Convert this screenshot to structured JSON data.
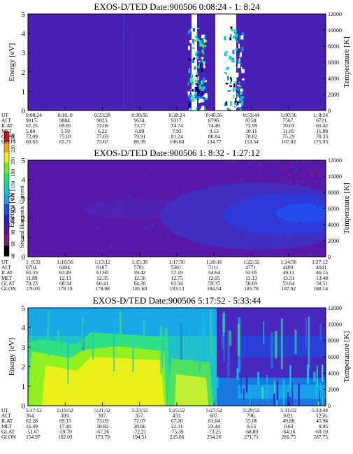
{
  "colorbar": {
    "title": "Second Harmonic Current",
    "ticks": [
      "40",
      "60",
      "80",
      "100",
      "120",
      "140",
      "160",
      "180",
      "200",
      "220",
      "240"
    ],
    "colors": [
      "#000000",
      "#8a1a7a",
      "#5a14a0",
      "#2a20c8",
      "#1e4de6",
      "#1aa0f0",
      "#18c8c0",
      "#20e070",
      "#70f020",
      "#e8f020",
      "#f0a010",
      "#e81010"
    ]
  },
  "chart_data": [
    {
      "type": "heatmap",
      "title": "EXOS-D/TED   Date:900506   0:08:24 - 1: 8:24",
      "ylabel": "Energy [eV]",
      "y2label": "Temperature [K]",
      "ylim": [
        0,
        5
      ],
      "y2lim": [
        0,
        12000
      ],
      "yticks": [
        "0",
        "1",
        "2",
        "3",
        "4",
        "5"
      ],
      "y2ticks": [
        "0",
        "2000",
        "4000",
        "6000",
        "8000",
        "10000",
        "12000"
      ],
      "background": "#4a20b4",
      "row_labels": [
        "UT",
        "ALT",
        "ILAT",
        "MLT",
        "GLAT",
        "GLON"
      ],
      "columns": [
        [
          "0:08:24",
          "9815.",
          "67.25",
          "5.08",
          "72.09",
          "60.63"
        ],
        [
          "0:16: 0",
          "9884.",
          "69.85",
          "5.59",
          "75.03",
          "65.71"
        ],
        [
          "0:23:28",
          "9823.",
          "72.06",
          "6.22",
          "77.69",
          "73.67"
        ],
        [
          "0:30:56",
          "9634.",
          "73.77",
          "6.99",
          "79.91",
          "86.39"
        ],
        [
          "0:38:24",
          "9317.",
          "74.74",
          "7.93",
          "81.24",
          "106.60"
        ],
        [
          "0:46:56",
          "8796.",
          "74.49",
          "9.13",
          "80.84",
          "134.77"
        ],
        [
          "0:53:44",
          "8258.",
          "72.99",
          "10.11",
          "78.82",
          "153.54"
        ],
        [
          "1:00:56",
          "7567.",
          "70.03",
          "11.05",
          "75.29",
          "167.02"
        ],
        [
          "1: 8:24",
          "6721.",
          "65.42",
          "11.88",
          "70.33",
          "175.93"
        ]
      ]
    },
    {
      "type": "heatmap",
      "title": "EXOS-D/TED   Date:900506   1: 8:32 - 1:27:12",
      "ylabel": "Energy [eV]",
      "y2label": "Temperature [K]",
      "ylim": [
        0,
        5
      ],
      "y2lim": [
        0,
        12000
      ],
      "yticks": [
        "0",
        "1",
        "2",
        "3",
        "4",
        "5"
      ],
      "y2ticks": [
        "0",
        "2000",
        "4000",
        "6000",
        "8000",
        "10000",
        "12000"
      ],
      "background": "#5a18a8",
      "row_labels": [
        "UT",
        "ALT",
        "ILAT",
        "MLT",
        "GLAT",
        "GLON"
      ],
      "columns": [
        [
          "1: 8:32",
          "6704.",
          "65.33",
          "11.89",
          "70.23",
          "176.05"
        ],
        [
          "1:10:56",
          "6404.",
          "63.49",
          "12.13",
          "68.34",
          "178.19"
        ],
        [
          "1:13:12",
          "6107.",
          "61.60",
          "12.35",
          "66.41",
          "179.98"
        ],
        [
          "1:15:36",
          "5781.",
          "59.42",
          "12.56",
          "64.20",
          "181.68"
        ],
        [
          "1:17:56",
          "5461.",
          "57.19",
          "12.75",
          "61.94",
          "183.13"
        ],
        [
          "1:20:16",
          "5111.",
          "54.64",
          "12.95",
          "59.35",
          "184.54"
        ],
        [
          "1:22:32",
          "4771.",
          "52.05",
          "13.13",
          "56.69",
          "185.78"
        ],
        [
          "1:24:56",
          "4400.",
          "49.11",
          "13.31",
          "53.64",
          "187.02"
        ],
        [
          "1:27:12",
          "4041.",
          "46.15",
          "13.48",
          "50.51",
          "188.14"
        ]
      ]
    },
    {
      "type": "heatmap",
      "title": "EXOS-D/TED   Date:900506   5:17:52 - 5:33:44",
      "ylabel": "Energy [eV]",
      "y2label": "Temperature [K]",
      "ylim": [
        0,
        5
      ],
      "y2lim": [
        0,
        12000
      ],
      "yticks": [
        "0",
        "1",
        "2",
        "3",
        "4",
        "5"
      ],
      "y2ticks": [
        "0",
        "2000",
        "4000",
        "6000",
        "8000",
        "10000",
        "12000"
      ],
      "background": "#10a0e8",
      "row_labels": [
        "UT",
        "ALT",
        "ILAT",
        "MLT",
        "GLAT",
        "GLON"
      ],
      "columns": [
        [
          "5:17:52",
          "364.",
          "62.28",
          "16.49",
          "-51.67",
          "154.97"
        ],
        [
          "5:19:52",
          "309.",
          "69.15",
          "17.40",
          "-59.79",
          "162.03"
        ],
        [
          "5:21:52",
          "307.",
          "73.09",
          "18.82",
          "-67.36",
          "173.79"
        ],
        [
          "5:23:52",
          "357.",
          "72.07",
          "20.66",
          "-72.21",
          "194.51"
        ],
        [
          "5:25:52",
          "459.",
          "67.20",
          "22.31",
          "-75.39",
          "225.66"
        ],
        [
          "5:27:52",
          "607.",
          "61.04",
          "23.44",
          "-73.25",
          "254.26"
        ],
        [
          "5:29:52",
          "796.",
          "55.06",
          "0.15",
          "-68.89",
          "271.71"
        ],
        [
          "5:31:52",
          "1021.",
          "49.88",
          "0.63",
          "-64.16",
          "281.75"
        ],
        [
          "5:33:44",
          "1258.",
          "45.94",
          "0.95",
          "-60.10",
          "287.75"
        ]
      ]
    }
  ]
}
